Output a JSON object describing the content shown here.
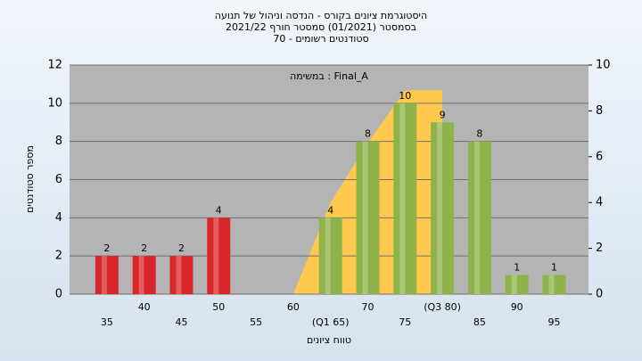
{
  "chart_data": {
    "type": "bar",
    "title": [
      "היסטוגרמת ציונים בקורס - הנדסה וניהול של תנועה",
      "בסמסטר  (01/2021)  סמסטר חורף 2021/22",
      "סטודנטים רשומים - 70"
    ],
    "annotation": "במשימה : Final_A",
    "x_label": "טווח ציונים",
    "y_label": "מספר סטודנטים",
    "categories": [
      "35",
      "40",
      "45",
      "50",
      "55",
      "60",
      "(Q1 65)",
      "70",
      "75",
      "(Q3 80)",
      "85",
      "90",
      "95"
    ],
    "values": [
      2,
      2,
      2,
      4,
      0,
      0,
      4,
      8,
      10,
      9,
      8,
      1,
      1
    ],
    "value_labels": [
      "2",
      "2",
      "2",
      "4",
      null,
      null,
      "4",
      "8",
      "10",
      "9",
      "8",
      "1",
      "1"
    ],
    "colors": [
      "#d9262b",
      "#d9262b",
      "#d9262b",
      "#d9262b",
      "#d9262b",
      "#d9262b",
      "#8db34a",
      "#8db34a",
      "#8db34a",
      "#8db34a",
      "#8db34a",
      "#8db34a",
      "#8db34a"
    ],
    "area": {
      "color": "#ffc94d",
      "axis": "y2",
      "values": [
        null,
        null,
        null,
        null,
        null,
        0,
        4,
        6.6,
        8.9,
        8.9,
        null,
        null,
        null
      ]
    },
    "ylim": [
      0,
      12
    ],
    "yticks": [
      0,
      2,
      4,
      6,
      8,
      10,
      12
    ],
    "y2lim": [
      0,
      10
    ],
    "y2ticks": [
      0,
      2,
      4,
      6,
      8,
      10
    ],
    "grid": true
  }
}
